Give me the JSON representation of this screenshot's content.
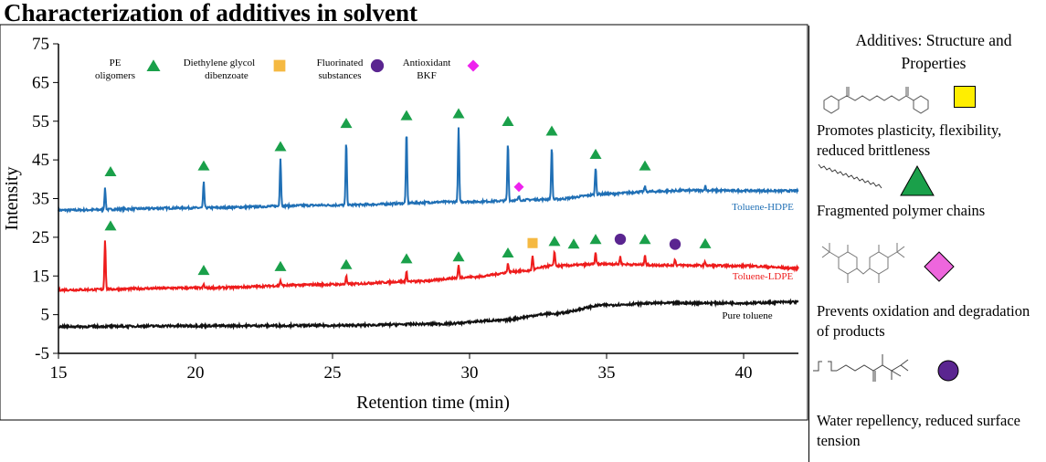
{
  "title": "Characterization of additives in solvent",
  "panel": {
    "title": "Additives: Structure and Properties",
    "items": [
      {
        "desc": "Promotes plasticity, flexibility, reduced brittleness",
        "shape": "square",
        "color": "#ffee00",
        "icon": "diethylene-glycol-dibenzoate-structure-icon"
      },
      {
        "desc": "Fragmented polymer chains",
        "shape": "triangle",
        "color": "#1aa04a",
        "icon": "zigzag-chain-icon"
      },
      {
        "desc": "Prevents oxidation and degradation of products",
        "shape": "diamond",
        "color": "#ee66dd",
        "icon": "antioxidant-bkf-structure-icon"
      },
      {
        "desc": "Water repellency, reduced surface tension",
        "shape": "circle",
        "color": "#5a2590",
        "icon": "fluorinated-structure-icon"
      }
    ]
  },
  "chart_data": {
    "type": "line",
    "xlabel": "Retention time (min)",
    "ylabel": "Intensity",
    "xlim": [
      15,
      42
    ],
    "ylim": [
      -5,
      75
    ],
    "xticks": [
      15,
      20,
      25,
      30,
      35,
      40
    ],
    "yticks": [
      -5,
      5,
      15,
      25,
      35,
      45,
      55,
      65,
      75
    ],
    "grid": false,
    "legend": [
      {
        "label": "PE oligomers",
        "shape": "triangle",
        "color": "#1aa04a"
      },
      {
        "label": "Diethylene glycol dibenzoate",
        "shape": "square",
        "color": "#f5b942"
      },
      {
        "label": "Fluorinated substances",
        "shape": "circle",
        "color": "#5a2590"
      },
      {
        "label": "Antioxidant BKF",
        "shape": "diamond",
        "color": "#ee22ee"
      }
    ],
    "series": [
      {
        "name": "Toluene-HDPE",
        "color": "#1f6fb5",
        "baseline": [
          [
            15,
            32
          ],
          [
            20,
            32.6
          ],
          [
            25,
            33.3
          ],
          [
            30,
            34.2
          ],
          [
            33,
            34.8
          ],
          [
            35,
            36.2
          ],
          [
            36.5,
            36.8
          ],
          [
            38,
            37.1
          ],
          [
            42,
            37
          ]
        ],
        "peaks": [
          [
            16.7,
            37.6
          ],
          [
            20.3,
            39.2
          ],
          [
            23.1,
            45.4
          ],
          [
            25.5,
            49.8
          ],
          [
            27.7,
            52.2
          ],
          [
            29.6,
            53.2
          ],
          [
            31.4,
            49.5
          ],
          [
            31.8,
            35.6
          ],
          [
            33.0,
            48.5
          ],
          [
            34.6,
            43.2
          ],
          [
            36.4,
            38.2
          ],
          [
            38.6,
            38.3
          ]
        ]
      },
      {
        "name": "Toluene-LDPE",
        "color": "#ee1c1c",
        "baseline": [
          [
            15,
            11.4
          ],
          [
            20,
            11.9
          ],
          [
            25,
            12.8
          ],
          [
            28,
            13.6
          ],
          [
            30,
            14.7
          ],
          [
            32,
            16.3
          ],
          [
            33,
            17.6
          ],
          [
            35,
            18.1
          ],
          [
            37,
            17.8
          ],
          [
            40,
            17.6
          ],
          [
            42,
            17
          ]
        ],
        "peaks": [
          [
            16.7,
            24.5
          ],
          [
            20.3,
            12.8
          ],
          [
            23.1,
            13.8
          ],
          [
            25.5,
            15
          ],
          [
            27.7,
            16
          ],
          [
            29.6,
            17.8
          ],
          [
            31.4,
            18.3
          ],
          [
            32.3,
            20.3
          ],
          [
            33.1,
            21.5
          ],
          [
            34.6,
            21
          ],
          [
            35.5,
            20
          ],
          [
            36.4,
            20.6
          ],
          [
            37.5,
            19.3
          ],
          [
            38.6,
            18.6
          ]
        ]
      },
      {
        "name": "Pure toluene",
        "color": "#111111",
        "baseline": [
          [
            15,
            1.9
          ],
          [
            20,
            2.1
          ],
          [
            25,
            2.2
          ],
          [
            29,
            2.6
          ],
          [
            31,
            3.5
          ],
          [
            33,
            5.2
          ],
          [
            35,
            7.5
          ],
          [
            37,
            8
          ],
          [
            40,
            8
          ],
          [
            42,
            8.3
          ]
        ],
        "peaks": []
      }
    ],
    "markers": [
      {
        "shape": "triangle",
        "color": "#1aa04a",
        "points": [
          [
            16.9,
            42
          ],
          [
            20.3,
            43.5
          ],
          [
            23.1,
            48.5
          ],
          [
            25.5,
            54.5
          ],
          [
            27.7,
            56.5
          ],
          [
            29.6,
            57
          ],
          [
            31.4,
            55
          ],
          [
            33.0,
            52.5
          ],
          [
            34.6,
            46.5
          ],
          [
            36.4,
            43.5
          ],
          [
            16.9,
            28
          ],
          [
            20.3,
            16.5
          ],
          [
            23.1,
            17.5
          ],
          [
            25.5,
            18
          ],
          [
            27.7,
            19.5
          ],
          [
            29.6,
            20
          ],
          [
            31.4,
            21
          ],
          [
            33.1,
            24
          ],
          [
            33.8,
            23.3
          ],
          [
            34.6,
            24.5
          ],
          [
            36.4,
            24.5
          ],
          [
            38.6,
            23.4
          ]
        ]
      },
      {
        "shape": "diamond",
        "color": "#ee22ee",
        "points": [
          [
            31.8,
            38
          ]
        ]
      },
      {
        "shape": "square",
        "color": "#f5b942",
        "points": [
          [
            32.3,
            23.5
          ]
        ]
      },
      {
        "shape": "circle",
        "color": "#5a2590",
        "points": [
          [
            35.5,
            24.5
          ],
          [
            37.5,
            23.2
          ]
        ]
      }
    ]
  }
}
